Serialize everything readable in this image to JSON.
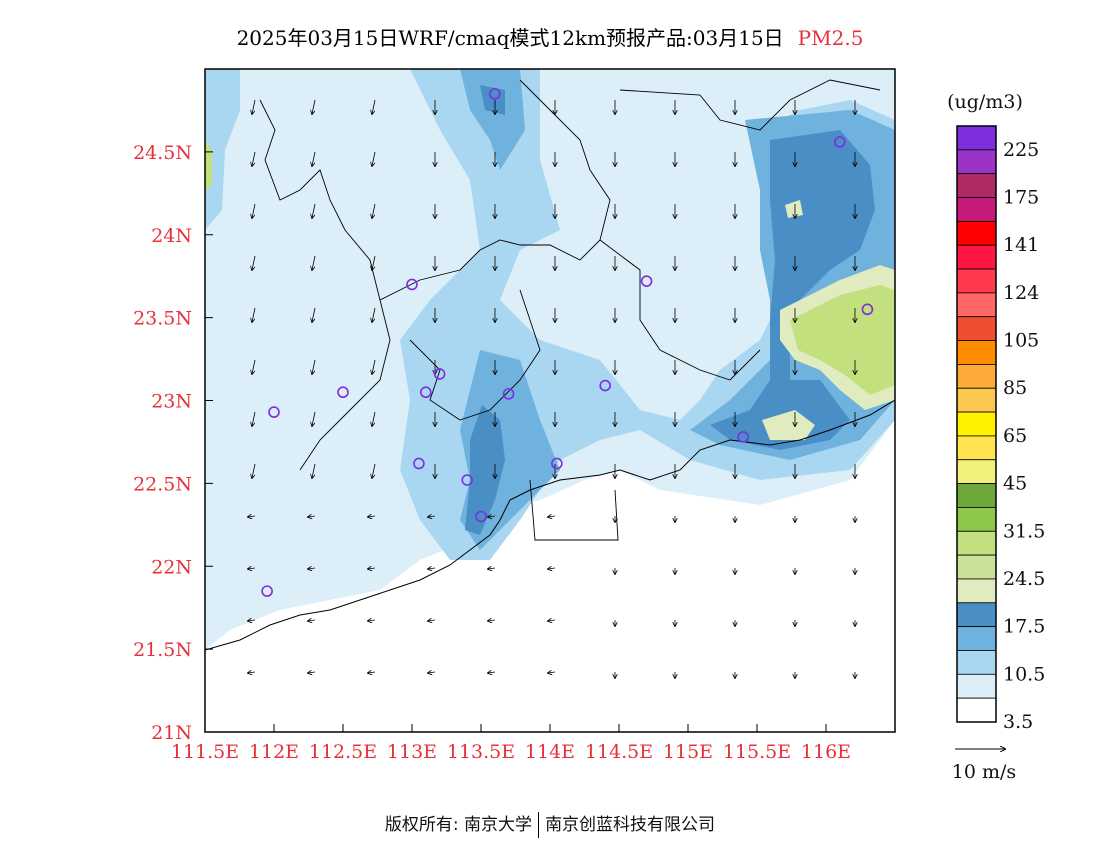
{
  "title": {
    "main": "2025年03月15日WRF/cmaq模式12km预报产品:03月15日",
    "pollutant": "PM2.5"
  },
  "map": {
    "lat_ticks": [
      "21N",
      "21.5N",
      "22N",
      "22.5N",
      "23N",
      "23.5N",
      "24N",
      "24.5N"
    ],
    "lon_ticks": [
      "111.5E",
      "112E",
      "112.5E",
      "113E",
      "113.5E",
      "114E",
      "114.5E",
      "115E",
      "115.5E",
      "116E"
    ],
    "colors": {
      "c_white": "#ffffff",
      "c_3_5": "#dceff9",
      "c_7": "#a9d6f0",
      "c_10_5": "#6fb2de",
      "c_14": "#4a8ec6",
      "c_17_5": "#e0ebc0",
      "c_21": "#c2e07d"
    },
    "stations": [
      {
        "lon": 113.6,
        "lat": 24.85
      },
      {
        "lon": 116.1,
        "lat": 24.56
      },
      {
        "lon": 113.0,
        "lat": 23.7
      },
      {
        "lon": 114.7,
        "lat": 23.72
      },
      {
        "lon": 116.3,
        "lat": 23.55
      },
      {
        "lon": 112.5,
        "lat": 23.05
      },
      {
        "lon": 112.0,
        "lat": 22.93
      },
      {
        "lon": 113.1,
        "lat": 23.05
      },
      {
        "lon": 113.2,
        "lat": 23.16
      },
      {
        "lon": 113.7,
        "lat": 23.04
      },
      {
        "lon": 114.4,
        "lat": 23.09
      },
      {
        "lon": 115.4,
        "lat": 22.78
      },
      {
        "lon": 113.05,
        "lat": 22.62
      },
      {
        "lon": 113.4,
        "lat": 22.52
      },
      {
        "lon": 114.05,
        "lat": 22.62
      },
      {
        "lon": 113.5,
        "lat": 22.3
      },
      {
        "lon": 111.95,
        "lat": 21.85
      }
    ]
  },
  "colorbar": {
    "unit": "(ug/m3)",
    "labels": [
      "225",
      "175",
      "141",
      "124",
      "105",
      "85",
      "65",
      "45",
      "31.5",
      "24.5",
      "17.5",
      "10.5",
      "3.5"
    ],
    "colors": [
      "#7d2fe0",
      "#9c33c9",
      "#b02a66",
      "#c41a7a",
      "#ff0000",
      "#ff1744",
      "#ff3a4c",
      "#ff6666",
      "#f04f2f",
      "#fe8a00",
      "#fdaa3b",
      "#fbc84f",
      "#fff200",
      "#ffe44d",
      "#f0f27a",
      "#6fa83a",
      "#8dc84a",
      "#c2e07d",
      "#c8e29a",
      "#e0ebc0",
      "#4a8ec6",
      "#6fb2de",
      "#a9d6f0",
      "#dceff9",
      "#ffffff"
    ]
  },
  "wind_legend": {
    "label": "10 m/s"
  },
  "footer": {
    "left": "版权所有: 南京大学",
    "right": "南京创蓝科技有限公司"
  }
}
